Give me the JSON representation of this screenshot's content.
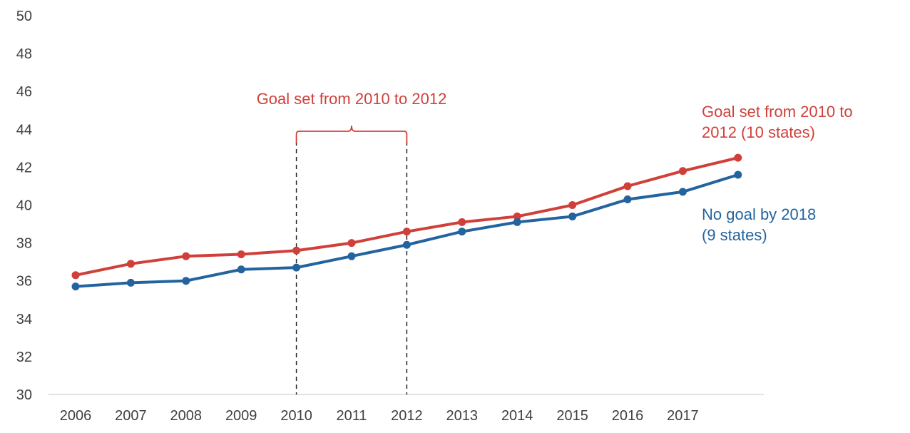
{
  "chart_data": {
    "type": "line",
    "x": [
      "2006",
      "2007",
      "2008",
      "2009",
      "2010",
      "2011",
      "2012",
      "2013",
      "2014",
      "2015",
      "2016",
      "2017",
      "2018"
    ],
    "x_tick_labels": [
      "2006",
      "2007",
      "2008",
      "2009",
      "2010",
      "2011",
      "2012",
      "2013",
      "2014",
      "2015",
      "2016",
      "2017"
    ],
    "y_ticks": [
      "30",
      "32",
      "34",
      "36",
      "38",
      "40",
      "42",
      "44",
      "46",
      "48",
      "50"
    ],
    "ylim": [
      30,
      50
    ],
    "grid": false,
    "series": [
      {
        "label_lines": [
          "Goal set from 2010 to",
          "2012 (10 states)"
        ],
        "color": "#d0403a",
        "values": [
          36.3,
          36.9,
          37.3,
          37.4,
          37.6,
          38.0,
          38.6,
          39.1,
          39.4,
          40.0,
          41.0,
          41.8,
          42.5
        ]
      },
      {
        "label_lines": [
          "No goal by 2018",
          "(9 states)"
        ],
        "color": "#23649f",
        "values": [
          35.7,
          35.9,
          36.0,
          36.6,
          36.7,
          37.3,
          37.9,
          38.6,
          39.1,
          39.4,
          40.3,
          40.7,
          41.6
        ]
      }
    ],
    "annotation": {
      "text": "Goal set from 2010 to 2012",
      "color": "#d0403a",
      "range": [
        "2010",
        "2012"
      ]
    }
  }
}
